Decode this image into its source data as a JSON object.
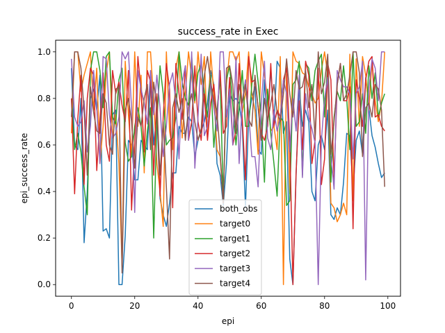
{
  "chart_data": {
    "type": "line",
    "title": "success_rate in Exec",
    "xlabel": "epi",
    "ylabel": "epi_success_rate",
    "xlim": [
      -5,
      104
    ],
    "ylim": [
      -0.05,
      1.05
    ],
    "xticks": [
      0,
      20,
      40,
      60,
      80,
      100
    ],
    "yticks": [
      0.0,
      0.2,
      0.4,
      0.6,
      0.8,
      1.0
    ],
    "grid": false,
    "legend_position": "lower-center",
    "series": [
      {
        "name": "both_obs",
        "color": "#1f77b4",
        "values": [
          0.93,
          0.6,
          0.58,
          0.8,
          0.18,
          0.4,
          0.8,
          0.84,
          0.75,
          0.9,
          0.23,
          0.24,
          0.2,
          0.73,
          0.75,
          0.0,
          0.0,
          0.21,
          0.62,
          0.6,
          0.45,
          0.45,
          0.62,
          0.6,
          0.58,
          0.88,
          0.6,
          0.74,
          0.37,
          0.3,
          0.25,
          0.35,
          0.48,
          0.48,
          0.68,
          0.65,
          0.65,
          0.72,
          0.7,
          0.55,
          0.62,
          0.66,
          0.7,
          0.78,
          0.92,
          0.86,
          0.52,
          0.47,
          0.34,
          0.52,
          0.82,
          0.79,
          0.8,
          0.78,
          0.68,
          0.33,
          0.72,
          0.8,
          0.85,
          0.58,
          0.56,
          0.88,
          0.68,
          0.93,
          0.69,
          0.96,
          0.93,
          0.65,
          0.7,
          0.11,
          0.0,
          0.47,
          0.85,
          0.68,
          0.75,
          0.7,
          0.4,
          0.36,
          0.6,
          0.64,
          0.58,
          0.75,
          0.3,
          0.28,
          0.33,
          0.3,
          0.44,
          0.65,
          0.64,
          0.4,
          0.62,
          0.66,
          0.56,
          0.89,
          0.76,
          0.64,
          0.59,
          0.52,
          0.46,
          0.48
        ]
      },
      {
        "name": "target0",
        "color": "#ff7f0e",
        "values": [
          0.65,
          1.0,
          1.0,
          0.83,
          0.9,
          0.95,
          1.0,
          0.75,
          0.93,
          0.52,
          0.68,
          0.91,
          1.0,
          0.63,
          0.73,
          0.52,
          0.08,
          0.96,
          0.73,
          0.55,
          1.0,
          0.68,
          0.9,
          0.48,
          1.0,
          1.0,
          0.79,
          0.52,
          0.4,
          0.25,
          1.0,
          0.66,
          0.58,
          0.93,
          1.0,
          0.63,
          0.82,
          1.0,
          0.89,
          0.78,
          1.0,
          0.86,
          0.98,
          0.63,
          1.0,
          0.82,
          0.58,
          0.55,
          0.35,
          0.86,
          1.0,
          1.0,
          0.96,
          1.0,
          0.74,
          0.82,
          1.0,
          0.82,
          0.75,
          0.56,
          1.0,
          0.9,
          0.8,
          0.66,
          0.68,
          0.58,
          0.98,
          0.0,
          0.94,
          0.39,
          1.0,
          0.96,
          0.95,
          0.91,
          0.9,
          0.85,
          0.82,
          0.78,
          0.8,
          0.92,
          1.0,
          0.9,
          0.35,
          0.33,
          0.27,
          0.3,
          0.35,
          0.3,
          0.99,
          0.36,
          0.97,
          0.68,
          0.98,
          0.9,
          0.75,
          0.96,
          0.79,
          0.7,
          0.78,
          1.0
        ]
      },
      {
        "name": "target1",
        "color": "#2ca02c",
        "values": [
          0.8,
          0.58,
          0.65,
          0.57,
          0.42,
          0.3,
          0.92,
          1.0,
          1.0,
          0.92,
          0.76,
          0.98,
          1.0,
          0.72,
          0.69,
          0.88,
          0.93,
          0.61,
          0.53,
          0.55,
          0.68,
          0.76,
          0.68,
          0.51,
          0.66,
          0.76,
          0.2,
          0.7,
          0.94,
          0.82,
          0.6,
          0.62,
          0.63,
          0.72,
          1.0,
          0.87,
          0.8,
          0.77,
          0.98,
          0.79,
          0.91,
          0.95,
          0.83,
          0.72,
          0.9,
          0.59,
          0.75,
          0.89,
          0.36,
          0.88,
          0.94,
          0.77,
          0.6,
          0.76,
          0.92,
          0.68,
          0.68,
          0.86,
          0.99,
          0.87,
          0.72,
          0.44,
          0.84,
          0.65,
          0.52,
          0.38,
          0.72,
          0.7,
          0.34,
          0.36,
          0.86,
          0.88,
          0.96,
          0.47,
          0.95,
          0.93,
          0.79,
          0.92,
          0.96,
          0.99,
          0.72,
          0.96,
          0.44,
          0.72,
          0.83,
          0.79,
          0.94,
          0.8,
          0.58,
          1.0,
          0.68,
          0.7,
          0.82,
          0.65,
          0.94,
          0.8,
          0.91,
          0.72,
          0.78,
          0.82
        ]
      },
      {
        "name": "target2",
        "color": "#d62728",
        "values": [
          0.8,
          0.39,
          0.71,
          0.9,
          0.43,
          0.8,
          0.93,
          0.9,
          0.49,
          0.71,
          0.91,
          0.6,
          0.53,
          0.92,
          0.82,
          0.87,
          0.77,
          0.7,
          0.92,
          0.32,
          0.6,
          0.98,
          0.83,
          0.57,
          0.92,
          0.87,
          0.47,
          0.82,
          0.38,
          0.72,
          0.95,
          0.84,
          0.33,
          0.95,
          0.82,
          0.71,
          0.94,
          0.62,
          0.7,
          0.94,
          0.7,
          0.62,
          0.82,
          0.62,
          0.78,
          0.86,
          0.71,
          0.92,
          0.65,
          0.68,
          0.89,
          0.6,
          0.66,
          0.95,
          0.71,
          0.45,
          0.98,
          0.87,
          0.88,
          0.76,
          0.65,
          0.62,
          0.68,
          0.95,
          0.68,
          0.75,
          0.72,
          0.88,
          0.93,
          0.62,
          0.0,
          0.48,
          0.79,
          0.58,
          0.96,
          0.9,
          0.52,
          0.62,
          0.93,
          0.43,
          0.54,
          0.95,
          0.88,
          0.45,
          0.86,
          0.95,
          0.79,
          0.79,
          0.85,
          0.24,
          0.88,
          0.8,
          0.68,
          0.88,
          0.96,
          0.98,
          0.72,
          0.73,
          0.68,
          0.66
        ]
      },
      {
        "name": "target3",
        "color": "#9467bd",
        "values": [
          0.97,
          0.72,
          0.68,
          0.7,
          0.79,
          0.57,
          0.68,
          0.92,
          0.76,
          0.52,
          0.98,
          0.97,
          0.73,
          0.63,
          0.65,
          0.72,
          1.0,
          0.97,
          1.0,
          0.76,
          0.31,
          0.92,
          0.84,
          0.78,
          0.69,
          0.92,
          0.73,
          0.9,
          0.76,
          0.55,
          0.68,
          0.86,
          0.91,
          0.78,
          0.54,
          0.87,
          0.94,
          0.62,
          1.0,
          0.5,
          0.72,
          0.99,
          0.64,
          0.68,
          0.87,
          0.76,
          0.66,
          1.0,
          1.0,
          0.72,
          0.84,
          0.6,
          0.98,
          0.52,
          0.79,
          0.88,
          0.74,
          0.55,
          0.55,
          0.42,
          0.78,
          0.96,
          0.63,
          0.58,
          0.75,
          0.66,
          0.72,
          0.88,
          0.82,
          0.57,
          0.8,
          0.66,
          0.9,
          0.46,
          0.82,
          0.72,
          0.67,
          0.61,
          0.0,
          0.62,
          0.8,
          0.89,
          0.56,
          0.41,
          0.92,
          0.88,
          0.85,
          0.85,
          0.82,
          0.54,
          0.82,
          0.85,
          0.96,
          0.02,
          0.84,
          0.97,
          0.93,
          0.79,
          1.0,
          1.0
        ]
      },
      {
        "name": "target4",
        "color": "#8c564b",
        "values": [
          0.72,
          1.0,
          1.0,
          0.93,
          0.75,
          0.47,
          0.85,
          0.74,
          0.66,
          0.65,
          0.82,
          0.78,
          0.6,
          0.56,
          0.84,
          0.85,
          0.05,
          0.75,
          0.8,
          0.7,
          0.5,
          0.72,
          0.68,
          0.8,
          0.86,
          0.58,
          0.87,
          0.76,
          0.47,
          0.7,
          0.42,
          0.11,
          0.76,
          0.82,
          0.74,
          0.8,
          0.62,
          0.76,
          0.82,
          0.7,
          0.62,
          0.67,
          0.9,
          0.98,
          0.87,
          0.79,
          0.74,
          0.56,
          0.35,
          0.93,
          0.94,
          0.86,
          0.65,
          0.86,
          0.78,
          0.86,
          0.71,
          0.68,
          0.9,
          0.76,
          0.62,
          0.8,
          0.7,
          0.78,
          0.86,
          0.74,
          0.7,
          0.82,
          0.97,
          0.82,
          0.72,
          0.92,
          0.84,
          0.85,
          0.92,
          0.76,
          0.86,
          0.63,
          1.0,
          0.82,
          0.87,
          0.99,
          0.56,
          0.7,
          0.86,
          0.95,
          0.79,
          0.82,
          0.9,
          1.0,
          1.0,
          0.91,
          0.55,
          0.76,
          0.78,
          0.72,
          0.86,
          0.84,
          0.75,
          0.42
        ]
      }
    ]
  }
}
